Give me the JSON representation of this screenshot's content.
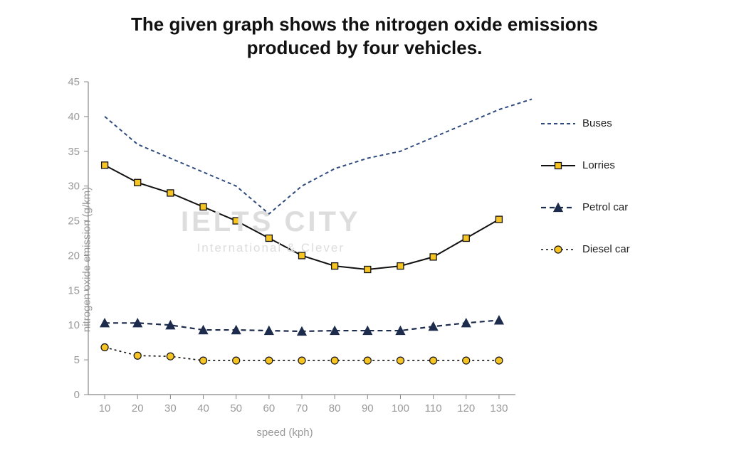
{
  "title_line1": "The given graph shows the nitrogen oxide emissions",
  "title_line2": "produced by four vehicles.",
  "title_fontsize": 26,
  "title_color": "#111111",
  "ylabel": "nitrogen oxide emission (g/km)",
  "xlabel": "speed (kph)",
  "axis_label_fontsize": 15,
  "axis_label_color": "#9a9a9a",
  "tick_font_color": "#9a9a9a",
  "tick_fontsize": 15,
  "background_color": "#ffffff",
  "axis_line_color": "#888888",
  "axis_line_width": 1.2,
  "grid": false,
  "x": {
    "values": [
      10,
      20,
      30,
      40,
      50,
      60,
      70,
      80,
      90,
      100,
      110,
      120,
      130
    ],
    "ticks": [
      10,
      20,
      30,
      40,
      50,
      60,
      70,
      80,
      90,
      100,
      110,
      120,
      130
    ],
    "lim": [
      5,
      135
    ]
  },
  "y": {
    "ticks": [
      0,
      5,
      10,
      15,
      20,
      25,
      30,
      35,
      40,
      45
    ],
    "lim": [
      0,
      45
    ]
  },
  "series": [
    {
      "key": "buses",
      "label": "Buses",
      "color": "#2e4a7d",
      "line_width": 2,
      "dash": "5 4",
      "marker": "none",
      "values": [
        40,
        36,
        34,
        32,
        30,
        26,
        30,
        32.5,
        34,
        35,
        37,
        39,
        41,
        42.5
      ],
      "x_extra_last": 140
    },
    {
      "key": "lorries",
      "label": "Lorries",
      "color": "#111111",
      "line_width": 2,
      "dash": "none",
      "marker": "square",
      "marker_size": 9,
      "marker_fill": "#f6c423",
      "marker_stroke": "#111111",
      "values": [
        33,
        30.5,
        29,
        27,
        25,
        22.5,
        20,
        18.5,
        18,
        18.5,
        19.8,
        22.5,
        25.2
      ]
    },
    {
      "key": "petrol",
      "label": "Petrol car",
      "color": "#1d2b4c",
      "line_width": 2.2,
      "dash": "7 5",
      "marker": "triangle",
      "marker_size": 10,
      "marker_fill": "#1d2b4c",
      "marker_stroke": "#1d2b4c",
      "values": [
        10.3,
        10.3,
        10,
        9.3,
        9.3,
        9.2,
        9.1,
        9.2,
        9.2,
        9.2,
        9.8,
        10.3,
        10.7
      ]
    },
    {
      "key": "diesel",
      "label": "Diesel car",
      "color": "#111111",
      "line_width": 1.6,
      "dash": "3 4",
      "marker": "circle",
      "marker_size": 10,
      "marker_fill": "#f6c423",
      "marker_stroke": "#111111",
      "values": [
        6.8,
        5.6,
        5.5,
        4.9,
        4.9,
        4.9,
        4.9,
        4.9,
        4.9,
        4.9,
        4.9,
        4.9,
        4.9
      ]
    }
  ],
  "legend": {
    "fontsize": 15,
    "text_color": "#222222",
    "item_gap": 42
  },
  "watermark": {
    "text": "IELTS CITY",
    "sub": "International & Clever",
    "color": "#dddddd",
    "fontsize": 40,
    "sub_fontsize": 17
  }
}
